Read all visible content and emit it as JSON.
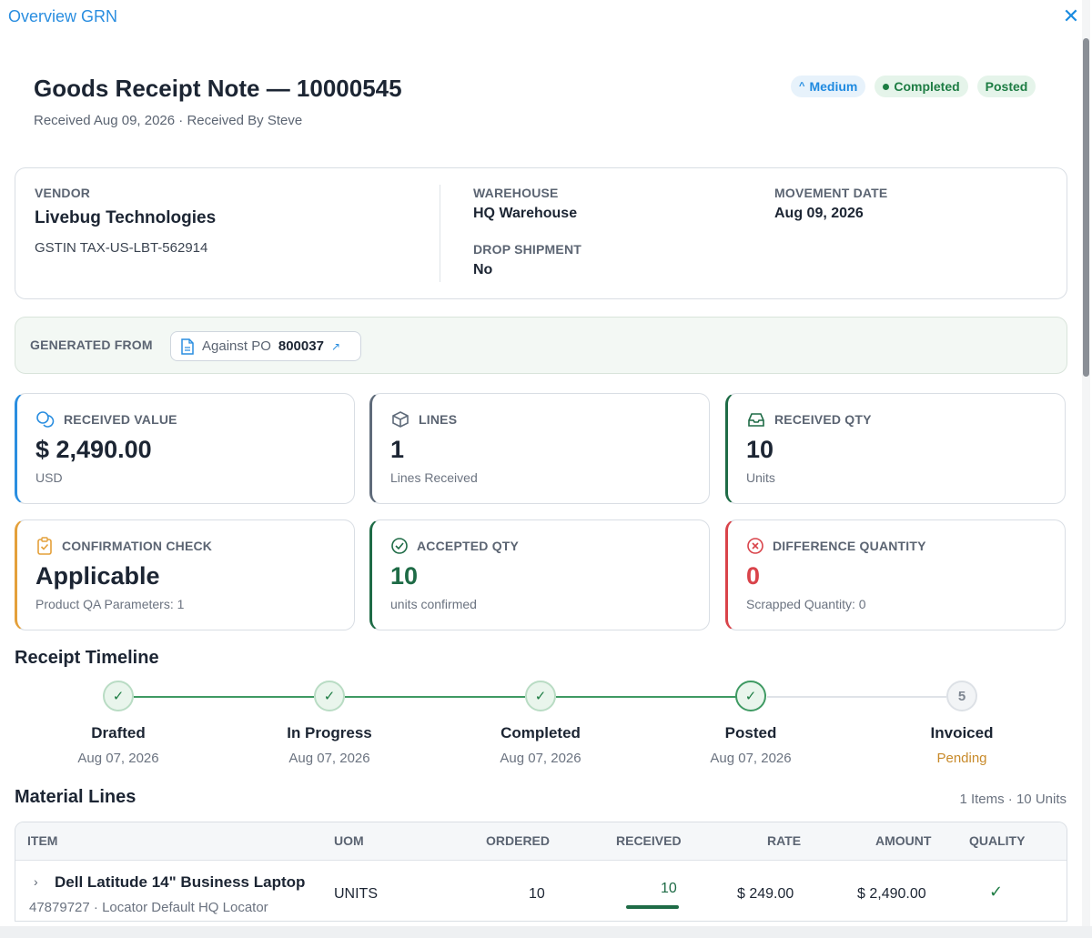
{
  "panel": {
    "title": "Overview GRN"
  },
  "header": {
    "title": "Goods Receipt Note — 10000545",
    "subtitle": "Received Aug 09, 2026 · Received By Steve",
    "badges": {
      "priority": "Medium",
      "status": "Completed",
      "posting": "Posted"
    }
  },
  "info": {
    "vendor_label": "VENDOR",
    "vendor_name": "Livebug Technologies",
    "vendor_gstin": "GSTIN TAX-US-LBT-562914",
    "warehouse_label": "WAREHOUSE",
    "warehouse_value": "HQ Warehouse",
    "drop_label": "DROP SHIPMENT",
    "drop_value": "No",
    "movement_label": "MOVEMENT DATE",
    "movement_value": "Aug 09, 2026"
  },
  "generated": {
    "label": "GENERATED FROM",
    "po_prefix": "Against PO",
    "po_number": "800037"
  },
  "kpis": {
    "received_value": {
      "label": "RECEIVED VALUE",
      "value": "$ 2,490.00",
      "sub": "USD"
    },
    "lines": {
      "label": "LINES",
      "value": "1",
      "sub": "Lines Received"
    },
    "received_qty": {
      "label": "RECEIVED QTY",
      "value": "10",
      "sub": "Units"
    },
    "confirmation": {
      "label": "CONFIRMATION CHECK",
      "value": "Applicable",
      "sub": "Product QA Parameters: 1"
    },
    "accepted_qty": {
      "label": "ACCEPTED QTY",
      "value": "10",
      "sub": "units confirmed"
    },
    "difference": {
      "label": "DIFFERENCE QUANTITY",
      "value": "0",
      "sub": "Scrapped Quantity: 0"
    }
  },
  "timeline": {
    "title": "Receipt Timeline",
    "steps": [
      {
        "label": "Drafted",
        "date": "Aug 07, 2026"
      },
      {
        "label": "In Progress",
        "date": "Aug 07, 2026"
      },
      {
        "label": "Completed",
        "date": "Aug 07, 2026"
      },
      {
        "label": "Posted",
        "date": "Aug 07, 2026"
      },
      {
        "label": "Invoiced",
        "date": "Pending",
        "number": "5"
      }
    ]
  },
  "lines": {
    "title": "Material Lines",
    "summary": "1 Items · 10 Units",
    "columns": [
      "ITEM",
      "UOM",
      "ORDERED",
      "RECEIVED",
      "RATE",
      "AMOUNT",
      "QUALITY"
    ],
    "rows": [
      {
        "item": "Dell Latitude 14\" Business Laptop",
        "item_meta": "47879727 · Locator Default HQ Locator",
        "uom": "UNITS",
        "ordered": "10",
        "received": "10",
        "rate": "$ 249.00",
        "amount": "$ 2,490.00"
      }
    ]
  },
  "colors": {
    "accent": "#2a8ee0",
    "success": "#1e7d44",
    "danger": "#d9434a",
    "warning": "#e4a03a"
  }
}
